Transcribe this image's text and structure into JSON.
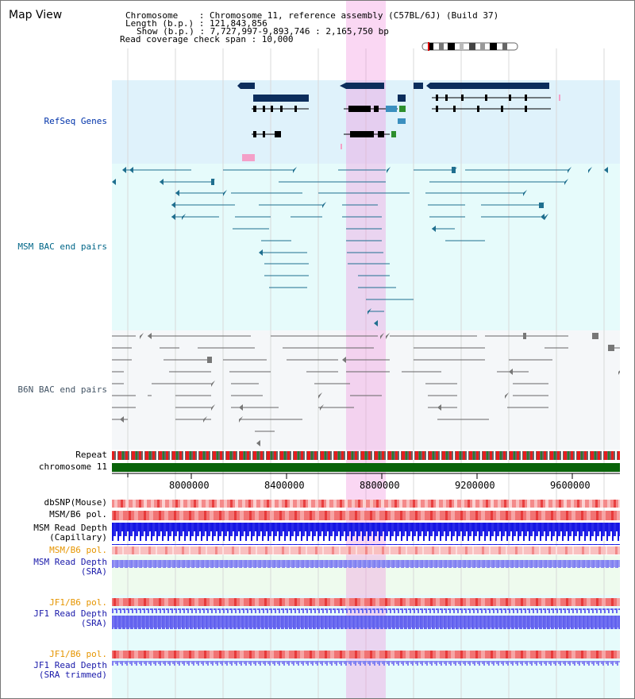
{
  "title": "Map View",
  "header": {
    "line1": "Chromosome    : Chromosome 11, reference assembly (C57BL/6J) (Build 37)",
    "line2": "Length (b.p.) : 121,843,856",
    "line3": "Show (b.p.) : 7,727,997-9,893,746 : 2,165,750 bp",
    "line4": "Read coverage check span : 10,000"
  },
  "tracks": {
    "refseq": "RefSeq Genes",
    "msm_bac": "MSM BAC end pairs",
    "b6n_bac": "B6N BAC end pairs",
    "repeat": "Repeat",
    "chromosome": "chromosome 11",
    "dbsnp": "dbSNP(Mouse)",
    "msm_b6_pol_1": "MSM/B6 pol.",
    "msm_read_depth_cap_1": "MSM Read Depth",
    "msm_read_depth_cap_2": "(Capillary)",
    "msm_b6_pol_2": "MSM/B6 pol.",
    "msm_read_depth_sra_1": "MSM Read Depth",
    "msm_read_depth_sra_2": "(SRA)",
    "jf1_b6_pol_1": "JF1/B6 pol.",
    "jf1_read_depth_sra_1": "JF1 Read Depth",
    "jf1_read_depth_sra_2": "(SRA)",
    "jf1_b6_pol_2": "JF1/B6 pol.",
    "jf1_read_depth_trim_1": "JF1 Read Depth",
    "jf1_read_depth_trim_2": "(SRA trimmed)"
  },
  "axis": {
    "ticks": [
      "8000000",
      "8400000",
      "8800000",
      "9200000",
      "9600000"
    ]
  },
  "colors": {
    "refseq_bg": "#dff2fb",
    "msm_bg": "#e6fbfb",
    "b6n_bg": "#f4f7fa",
    "highlight": "#f08cdc",
    "chromosome": "#0a640a"
  }
}
